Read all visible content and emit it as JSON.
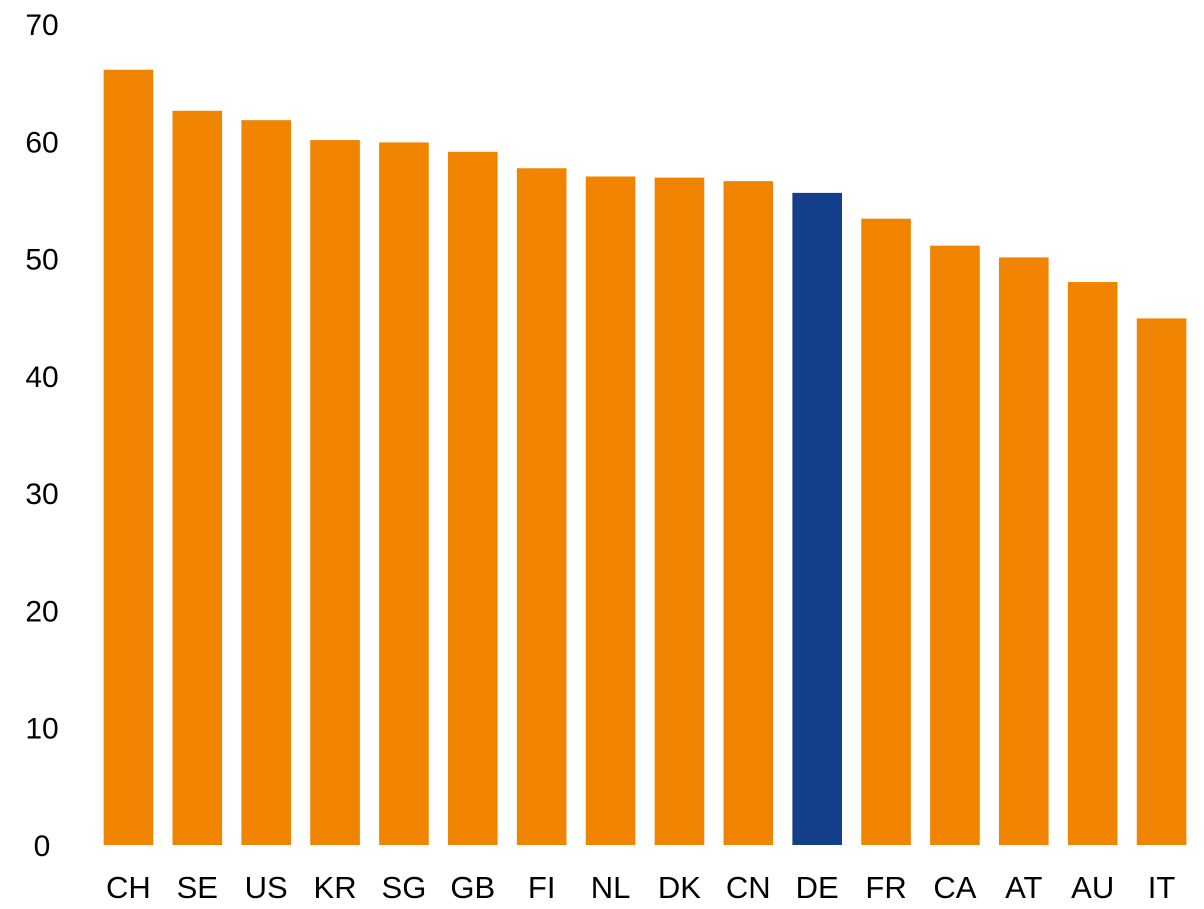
{
  "chart_data": {
    "type": "bar",
    "categories": [
      "CH",
      "SE",
      "US",
      "KR",
      "SG",
      "GB",
      "FI",
      "NL",
      "DK",
      "CN",
      "DE",
      "FR",
      "CA",
      "AT",
      "AU",
      "IT"
    ],
    "values": [
      66.1,
      62.6,
      61.8,
      60.1,
      59.9,
      59.1,
      57.7,
      57.0,
      56.9,
      56.6,
      55.6,
      53.4,
      51.1,
      50.1,
      48.0,
      44.9
    ],
    "ylim": [
      0,
      70
    ],
    "yticks": [
      0,
      10,
      20,
      30,
      40,
      50,
      60,
      70
    ],
    "grid": false,
    "legend": "none",
    "colors": {
      "default": "#F08300",
      "highlight": "#123E8A"
    },
    "highlight_category": "DE"
  }
}
